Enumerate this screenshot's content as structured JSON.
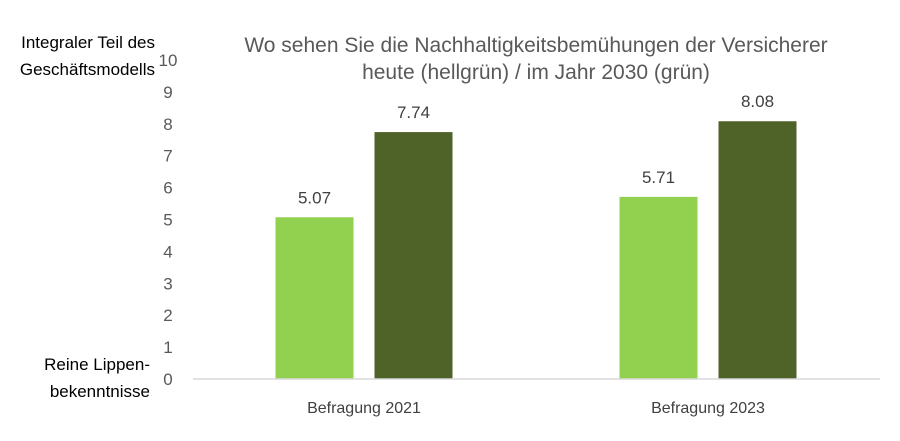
{
  "chart_data": {
    "type": "bar",
    "title": [
      "Wo sehen Sie die Nachhaltigkeitsbemühungen der Versicherer",
      "heute (hellgrün) / im Jahr 2030 (grün)"
    ],
    "categories": [
      "Befragung 2021",
      "Befragung 2023"
    ],
    "series": [
      {
        "values": [
          5.07,
          5.71
        ],
        "color": "#92d050"
      },
      {
        "values": [
          7.74,
          8.08
        ],
        "color": "#4f6228"
      }
    ],
    "data_labels": [
      [
        "5.07",
        "5.71"
      ],
      [
        "7.74",
        "8.08"
      ]
    ],
    "ylim": [
      0,
      10
    ],
    "yticks": [
      "0",
      "1",
      "2",
      "3",
      "4",
      "5",
      "6",
      "7",
      "8",
      "9",
      "10"
    ],
    "y_top_label": [
      "Integraler Teil des",
      "Geschäftsmodells"
    ],
    "y_bottom_label": [
      "Reine Lippen-",
      "bekenntnisse"
    ],
    "grid": false,
    "legend": "none"
  }
}
